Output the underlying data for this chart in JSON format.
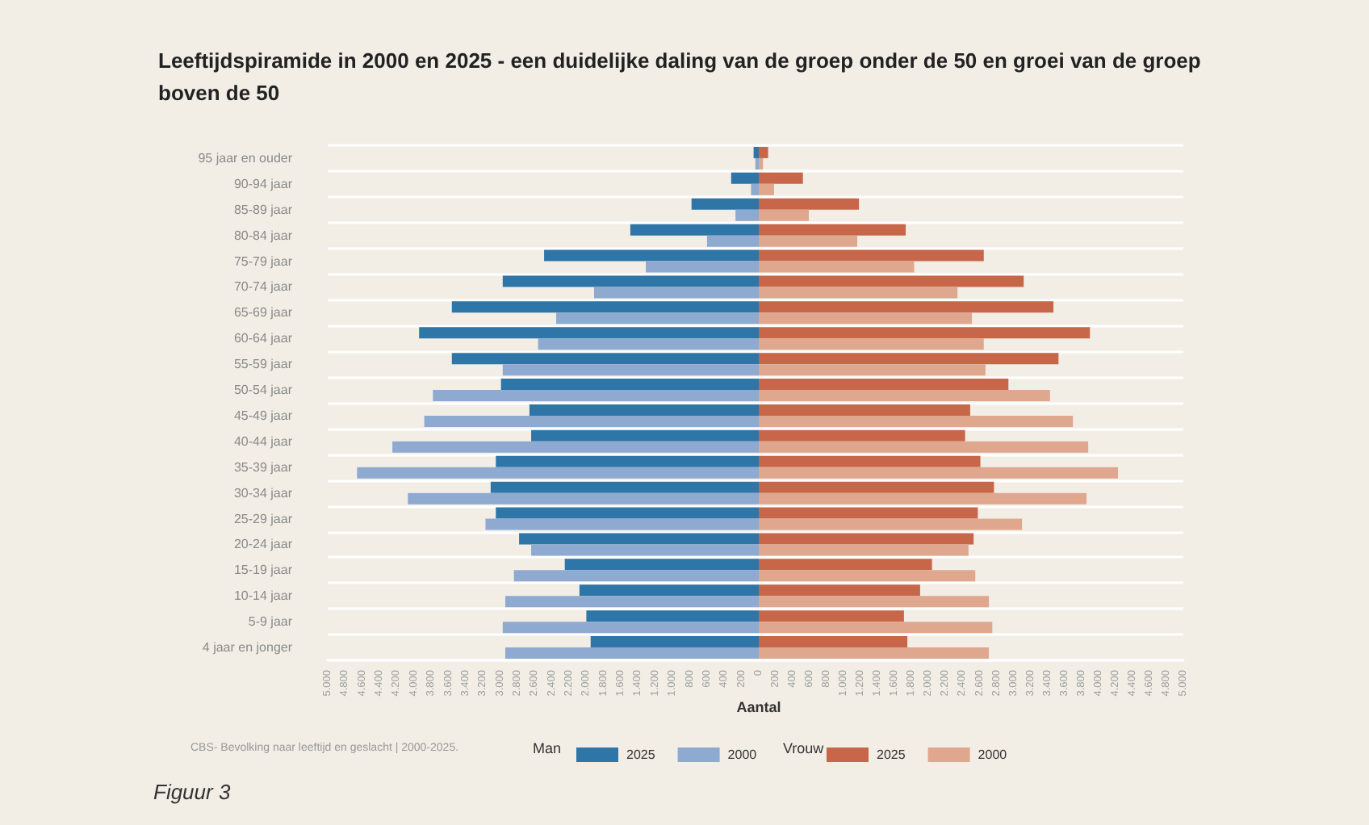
{
  "chart_data": [
    {
      "type": "bar",
      "orientation": "horizontal",
      "title": "Leeftijdspiramide in 2000 en 2025 - een duidelijke daling van de groep onder de 50 en groei van de groep boven de 50",
      "xlabel": "Aantal",
      "legend_title": "Man",
      "annotations": [
        "CBS- Bevolking naar leeftijd en geslacht | 2000-2025.",
        "Figuur 3"
      ],
      "categories": [
        "95 jaar en ouder",
        "90-94 jaar",
        "85-89 jaar",
        "80-84 jaar",
        "75-79 jaar",
        "70-74 jaar",
        "65-69 jaar",
        "60-64 jaar",
        "55-59 jaar",
        "50-54 jaar",
        "45-49 jaar",
        "40-44 jaar",
        "35-39 jaar",
        "30-34 jaar",
        "25-29 jaar",
        "20-24 jaar",
        "15-19 jaar",
        "10-14 jaar",
        "5-9 jaar",
        "4 jaar en jonger"
      ],
      "series": [
        {
          "name": "2025",
          "color": "#2e75a8",
          "values": [
            60,
            320,
            780,
            1490,
            2490,
            2970,
            3560,
            3940,
            3560,
            2990,
            2660,
            2640,
            3050,
            3110,
            3050,
            2780,
            2250,
            2080,
            2000,
            1950
          ]
        },
        {
          "name": "2000",
          "color": "#8eaad1",
          "values": [
            40,
            90,
            270,
            600,
            1310,
            1910,
            2350,
            2560,
            2970,
            3780,
            3880,
            4250,
            4660,
            4070,
            3170,
            2640,
            2840,
            2940,
            2970,
            2940
          ]
        }
      ],
      "xlim": [
        5000,
        0
      ],
      "xticks": [
        {
          "value": 5000,
          "label": "5.000"
        },
        {
          "value": 4800,
          "label": "4.800"
        },
        {
          "value": 4600,
          "label": "4.600"
        },
        {
          "value": 4400,
          "label": "4.400"
        },
        {
          "value": 4200,
          "label": "4.200"
        },
        {
          "value": 4000,
          "label": "4.000"
        },
        {
          "value": 3800,
          "label": "3.800"
        },
        {
          "value": 3600,
          "label": "3.600"
        },
        {
          "value": 3400,
          "label": "3.400"
        },
        {
          "value": 3200,
          "label": "3.200"
        },
        {
          "value": 3000,
          "label": "3.000"
        },
        {
          "value": 2800,
          "label": "2.800"
        },
        {
          "value": 2600,
          "label": "2.600"
        },
        {
          "value": 2400,
          "label": "2.400"
        },
        {
          "value": 2200,
          "label": "2.200"
        },
        {
          "value": 2000,
          "label": "2.000"
        },
        {
          "value": 1800,
          "label": "1.800"
        },
        {
          "value": 1600,
          "label": "1.600"
        },
        {
          "value": 1400,
          "label": "1.400"
        },
        {
          "value": 1200,
          "label": "1.200"
        },
        {
          "value": 1000,
          "label": "1.000"
        },
        800,
        600,
        400,
        200,
        0
      ],
      "grid": "y",
      "legend": "bottom"
    },
    {
      "type": "bar",
      "orientation": "horizontal",
      "legend_title": "Vrouw",
      "categories": [
        null,
        null,
        null,
        null,
        null,
        null,
        null,
        null,
        null,
        null,
        null,
        null,
        null,
        null,
        null,
        null,
        null,
        null,
        null,
        null
      ],
      "series": [
        {
          "name": "2025",
          "color": "#c8664a",
          "values": [
            110,
            520,
            1180,
            1730,
            2650,
            3120,
            3470,
            3900,
            3530,
            2940,
            2490,
            2430,
            2610,
            2770,
            2580,
            2530,
            2040,
            1900,
            1710,
            1750
          ]
        },
        {
          "name": "2000",
          "color": "#e0a78f",
          "values": [
            50,
            180,
            590,
            1160,
            1830,
            2340,
            2510,
            2650,
            2670,
            3430,
            3700,
            3880,
            4230,
            3860,
            3100,
            2470,
            2550,
            2710,
            2750,
            2710
          ]
        }
      ],
      "xlim": [
        0,
        5000
      ],
      "xticks": [
        200,
        400,
        600,
        800,
        {
          "value": 1000,
          "label": "1.000"
        },
        {
          "value": 1200,
          "label": "1.200"
        },
        {
          "value": 1400,
          "label": "1.400"
        },
        {
          "value": 1600,
          "label": "1.600"
        },
        {
          "value": 1800,
          "label": "1.800"
        },
        {
          "value": 2000,
          "label": "2.000"
        },
        {
          "value": 2200,
          "label": "2.200"
        },
        {
          "value": 2400,
          "label": "2.400"
        },
        {
          "value": 2600,
          "label": "2.600"
        },
        {
          "value": 2800,
          "label": "2.800"
        },
        {
          "value": 3000,
          "label": "3.000"
        },
        {
          "value": 3200,
          "label": "3.200"
        },
        {
          "value": 3400,
          "label": "3.400"
        },
        {
          "value": 3600,
          "label": "3.600"
        },
        {
          "value": 3800,
          "label": "3.800"
        },
        {
          "value": 4000,
          "label": "4.000"
        },
        {
          "value": 4200,
          "label": "4.200"
        },
        {
          "value": 4400,
          "label": "4.400"
        },
        {
          "value": 4600,
          "label": "4.600"
        },
        {
          "value": 4800,
          "label": "4.800"
        },
        {
          "value": 5000,
          "label": "5.000"
        }
      ],
      "tick_labels": "x",
      "grid": "y",
      "legend": "bottom"
    }
  ]
}
